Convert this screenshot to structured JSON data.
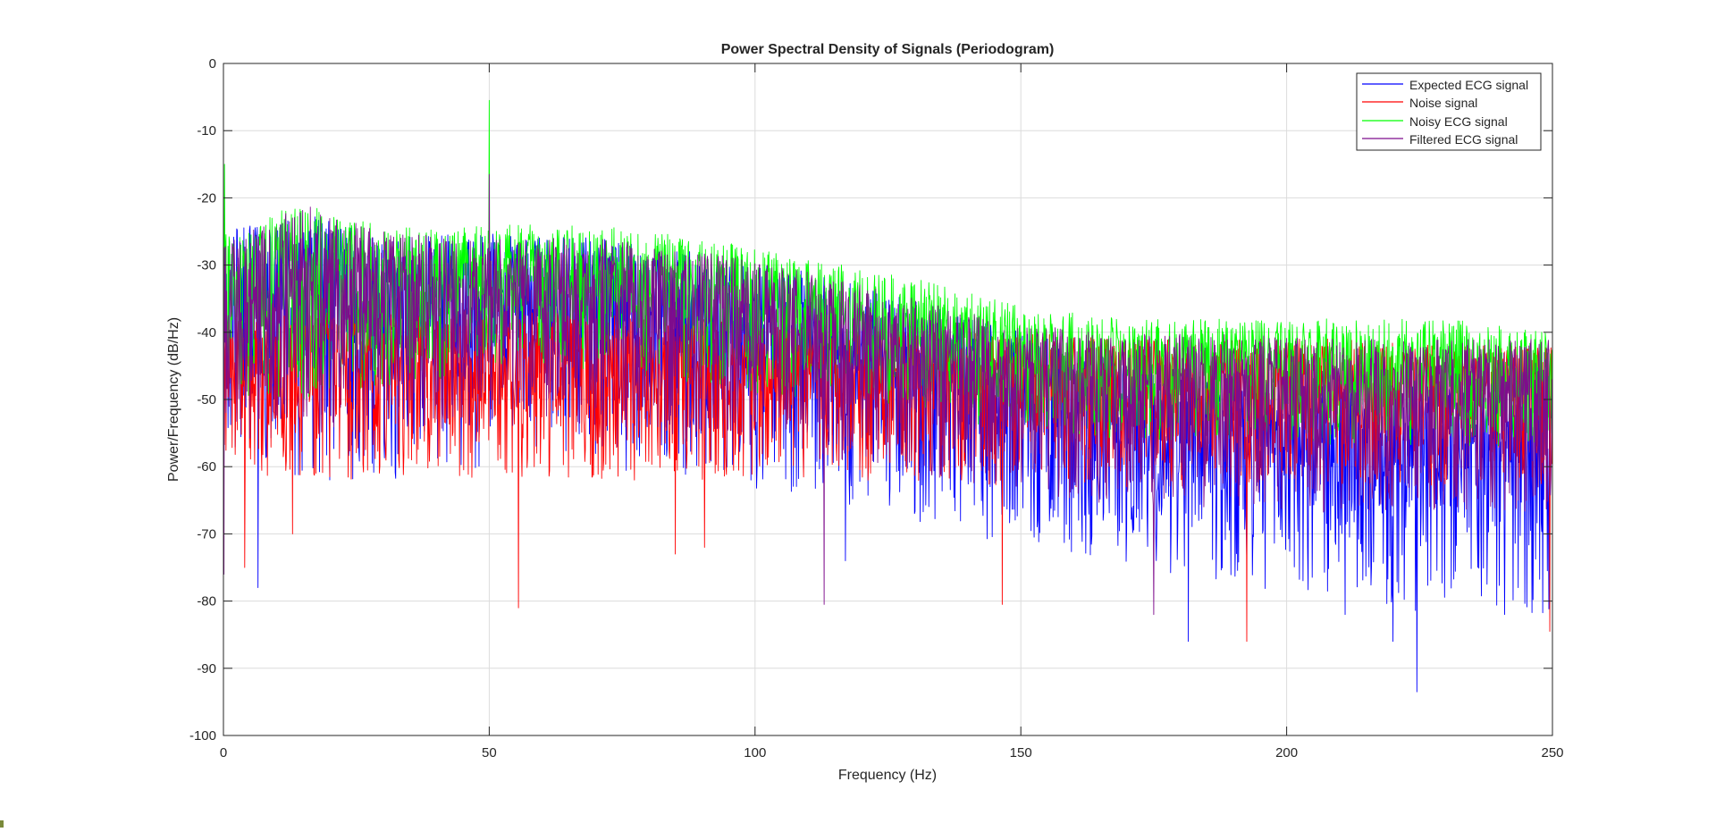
{
  "chart_data": {
    "type": "line",
    "title": "Power Spectral Density of Signals (Periodogram)",
    "xlabel": "Frequency (Hz)",
    "ylabel": "Power/Frequency (dB/Hz)",
    "xlim": [
      0,
      250
    ],
    "ylim": [
      -100,
      0
    ],
    "xticks": [
      0,
      50,
      100,
      150,
      200,
      250
    ],
    "xtick_labels": [
      "0",
      "50",
      "100",
      "150",
      "200",
      "250"
    ],
    "yticks": [
      0,
      -10,
      -20,
      -30,
      -40,
      -50,
      -60,
      -70,
      -80,
      -90,
      -100
    ],
    "ytick_labels": [
      "0",
      "-10",
      "-20",
      "-30",
      "-40",
      "-50",
      "-60",
      "-70",
      "-80",
      "-90",
      "-100"
    ],
    "grid": true,
    "legend_position": "top-right",
    "series": [
      {
        "name": "Expected ECG signal",
        "color": "#0000ff",
        "envelope": {
          "x": [
            0,
            5,
            15,
            30,
            50,
            70,
            90,
            110,
            130,
            150,
            170,
            190,
            210,
            230,
            250
          ],
          "upper": [
            -25,
            -24,
            -22,
            -26,
            -25,
            -26,
            -28,
            -31,
            -35,
            -40,
            -44,
            -46,
            -48,
            -48,
            -48
          ],
          "lower": [
            -55,
            -60,
            -62,
            -62,
            -60,
            -60,
            -62,
            -65,
            -68,
            -72,
            -75,
            -78,
            -80,
            -82,
            -82
          ],
          "center": [
            -38,
            -38,
            -36,
            -38,
            -37,
            -38,
            -40,
            -43,
            -47,
            -52,
            -55,
            -57,
            -59,
            -60,
            -60
          ]
        },
        "extremes": [
          {
            "x": 6.5,
            "y": -78
          },
          {
            "x": 117,
            "y": -74
          },
          {
            "x": 181.5,
            "y": -86
          },
          {
            "x": 211,
            "y": -82
          },
          {
            "x": 220,
            "y": -86
          },
          {
            "x": 224.5,
            "y": -93.5
          },
          {
            "x": 241,
            "y": -82
          }
        ]
      },
      {
        "name": "Noise signal",
        "color": "#ff0000",
        "envelope": {
          "x": [
            0,
            10,
            30,
            50,
            70,
            90,
            110,
            130,
            150,
            170,
            190,
            210,
            230,
            250
          ],
          "upper": [
            -38,
            -37,
            -37,
            -37,
            -37,
            -38,
            -39,
            -40,
            -40,
            -41,
            -41,
            -41,
            -42,
            -42
          ],
          "lower": [
            -60,
            -62,
            -62,
            -62,
            -62,
            -62,
            -62,
            -63,
            -63,
            -63,
            -63,
            -63,
            -63,
            -63
          ],
          "center": [
            -47,
            -47,
            -47,
            -47,
            -47,
            -47,
            -47,
            -48,
            -48,
            -48,
            -48,
            -48,
            -48,
            -48
          ]
        },
        "extremes": [
          {
            "x": 4,
            "y": -75
          },
          {
            "x": 13,
            "y": -70
          },
          {
            "x": 55.5,
            "y": -81
          },
          {
            "x": 85,
            "y": -73
          },
          {
            "x": 90.5,
            "y": -72
          },
          {
            "x": 146.5,
            "y": -80.5
          },
          {
            "x": 192.5,
            "y": -86
          },
          {
            "x": 249.5,
            "y": -84.5
          }
        ]
      },
      {
        "name": "Noisy ECG signal",
        "color": "#00ff00",
        "envelope": {
          "x": [
            0,
            5,
            15,
            30,
            50,
            70,
            90,
            110,
            130,
            150,
            170,
            190,
            210,
            230,
            250
          ],
          "upper": [
            -25,
            -23,
            -21,
            -24,
            -24,
            -24,
            -26,
            -29,
            -32,
            -36,
            -38,
            -38,
            -38,
            -38,
            -40
          ],
          "lower": [
            -48,
            -50,
            -50,
            -48,
            -46,
            -46,
            -48,
            -50,
            -52,
            -55,
            -56,
            -56,
            -57,
            -57,
            -57
          ],
          "center": [
            -35,
            -35,
            -33,
            -34,
            -33,
            -33,
            -35,
            -38,
            -41,
            -45,
            -46,
            -46,
            -47,
            -47,
            -48
          ]
        },
        "extremes": [
          {
            "x": 50,
            "y": -5.5
          },
          {
            "x": 0.2,
            "y": -15
          }
        ]
      },
      {
        "name": "Filtered ECG signal",
        "color": "#7e0c8c",
        "envelope": {
          "x": [
            0,
            5,
            15,
            30,
            50,
            70,
            90,
            110,
            130,
            150,
            170,
            190,
            210,
            230,
            250
          ],
          "upper": [
            -26,
            -25,
            -21,
            -25,
            -26,
            -26,
            -28,
            -31,
            -35,
            -39,
            -40,
            -40,
            -41,
            -41,
            -41
          ],
          "lower": [
            -52,
            -56,
            -56,
            -55,
            -54,
            -54,
            -56,
            -58,
            -61,
            -64,
            -66,
            -66,
            -67,
            -67,
            -67
          ],
          "center": [
            -37,
            -37,
            -35,
            -37,
            -36,
            -36,
            -38,
            -41,
            -45,
            -49,
            -50,
            -50,
            -51,
            -51,
            -52
          ]
        },
        "extremes": [
          {
            "x": 50,
            "y": -16.5
          },
          {
            "x": 113,
            "y": -80.5
          },
          {
            "x": 175,
            "y": -82
          },
          {
            "x": 0.1,
            "y": -76
          }
        ]
      }
    ]
  }
}
